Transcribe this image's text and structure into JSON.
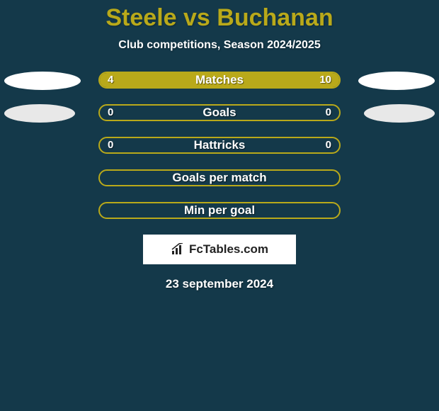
{
  "background_color": "#14394a",
  "title": {
    "text": "Steele vs Buchanan",
    "color": "#b9a91a",
    "fontsize": 34
  },
  "subtitle": {
    "text": "Club competitions, Season 2024/2025",
    "color": "#ffffff",
    "fontsize": 16
  },
  "bar_style": {
    "border_color": "#b9a91a",
    "fill_color": "#b9a91a",
    "track_color": "transparent",
    "label_color": "#ffffff",
    "value_color": "#ffffff",
    "label_fontsize": 17,
    "value_fontsize": 15
  },
  "oval_style": {
    "colors": [
      "#ffffff",
      "#e8e8e8"
    ],
    "widths": [
      108,
      100
    ]
  },
  "rows": [
    {
      "label": "Matches",
      "left_value": "4",
      "right_value": "10",
      "left_fill_pct": 28.6,
      "right_fill_pct": 71.4,
      "show_left_oval": true,
      "show_right_oval": true,
      "oval_group": 0
    },
    {
      "label": "Goals",
      "left_value": "0",
      "right_value": "0",
      "left_fill_pct": 0,
      "right_fill_pct": 0,
      "show_left_oval": true,
      "show_right_oval": true,
      "oval_group": 1
    },
    {
      "label": "Hattricks",
      "left_value": "0",
      "right_value": "0",
      "left_fill_pct": 0,
      "right_fill_pct": 0,
      "show_left_oval": false,
      "show_right_oval": false,
      "oval_group": 1
    },
    {
      "label": "Goals per match",
      "left_value": "",
      "right_value": "",
      "left_fill_pct": 0,
      "right_fill_pct": 0,
      "show_left_oval": false,
      "show_right_oval": false,
      "oval_group": 1
    },
    {
      "label": "Min per goal",
      "left_value": "",
      "right_value": "",
      "left_fill_pct": 0,
      "right_fill_pct": 0,
      "show_left_oval": false,
      "show_right_oval": false,
      "oval_group": 1
    }
  ],
  "branding": {
    "text": "FcTables.com",
    "icon": "chart-bars-icon"
  },
  "date": {
    "text": "23 september 2024",
    "color": "#ffffff",
    "fontsize": 17
  }
}
